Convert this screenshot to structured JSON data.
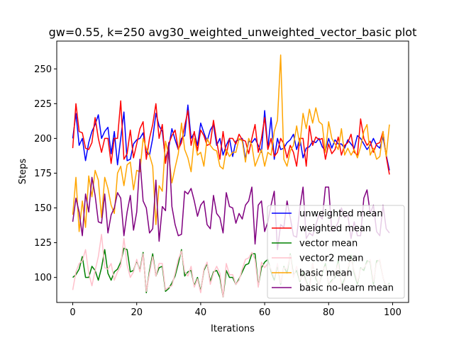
{
  "chart_data": {
    "type": "line",
    "title": "gw=0.55, k=250 avg30_weighted_unweighted_vector_basic plot",
    "xlabel": "Iterations",
    "ylabel": "Steps",
    "xlim": [
      -5,
      105
    ],
    "ylim": [
      82,
      270
    ],
    "xticks": [
      0,
      20,
      40,
      60,
      80,
      100
    ],
    "yticks": [
      100,
      125,
      150,
      175,
      200,
      225,
      250
    ],
    "grid": false,
    "legend_position": "lower-right",
    "series": [
      {
        "name": "unweighted mean",
        "color": "#0000ff",
        "values": [
          200,
          218,
          195,
          200,
          184,
          197,
          205,
          210,
          217,
          200,
          205,
          208,
          189,
          205,
          181,
          200,
          219,
          184,
          185,
          196,
          199,
          200,
          204,
          190,
          188,
          200,
          218,
          209,
          205,
          185,
          193,
          207,
          199,
          192,
          200,
          202,
          224,
          200,
          204,
          195,
          211,
          204,
          198,
          206,
          210,
          195,
          200,
          188,
          195,
          200,
          187,
          198,
          199,
          200,
          185,
          198,
          197,
          200,
          195,
          190,
          220,
          193,
          215,
          185,
          200,
          192,
          193,
          197,
          199,
          203,
          192,
          200,
          186,
          193,
          194,
          198,
          197,
          200,
          194,
          191,
          200,
          193,
          199,
          196,
          196,
          193,
          199,
          196,
          193,
          202,
          200,
          196,
          192,
          195,
          200,
          195,
          193,
          201,
          188,
          177
        ]
      },
      {
        "name": "weighted mean",
        "color": "#ff0000",
        "values": [
          193,
          225,
          205,
          204,
          193,
          192,
          197,
          215,
          200,
          190,
          200,
          200,
          182,
          200,
          200,
          227,
          185,
          189,
          206,
          186,
          196,
          207,
          212,
          185,
          200,
          210,
          225,
          200,
          210,
          182,
          196,
          202,
          206,
          192,
          197,
          209,
          220,
          195,
          205,
          191,
          206,
          202,
          195,
          196,
          213,
          198,
          185,
          205,
          188,
          200,
          200,
          196,
          203,
          199,
          198,
          189,
          200,
          210,
          190,
          200,
          215,
          192,
          200,
          187,
          190,
          200,
          196,
          186,
          195,
          190,
          180,
          200,
          200,
          180,
          209,
          195,
          201,
          199,
          200,
          185,
          196,
          189,
          192,
          201,
          188,
          195,
          197,
          203,
          190,
          188,
          214,
          200,
          195,
          198,
          190,
          196,
          197,
          205,
          187,
          174
        ]
      },
      {
        "name": "vector mean",
        "color": "#008000",
        "values": [
          100,
          102,
          106,
          115,
          100,
          100,
          108,
          105,
          98,
          107,
          120,
          103,
          98,
          104,
          106,
          111,
          121,
          120,
          104,
          105,
          112,
          105,
          118,
          89,
          105,
          117,
          101,
          107,
          108,
          90,
          92,
          96,
          101,
          110,
          120,
          101,
          104,
          105,
          94,
          100,
          90,
          105,
          110,
          97,
          104,
          105,
          100,
          86,
          105,
          100,
          100,
          95,
          99,
          104,
          109,
          110,
          117,
          117,
          94,
          107,
          111,
          113,
          104,
          98,
          109,
          95,
          108,
          103,
          117,
          102,
          105,
          97,
          104,
          97,
          92,
          110,
          99,
          95,
          103,
          110,
          95,
          98,
          100,
          113,
          94,
          99,
          105,
          116,
          103,
          95,
          107,
          105,
          112,
          111,
          95,
          112,
          112,
          100,
          93,
          96
        ]
      },
      {
        "name": "vector2 mean",
        "color": "#ffc0cb",
        "values": [
          91,
          104,
          110,
          112,
          120,
          103,
          94,
          105,
          115,
          131,
          107,
          106,
          110,
          98,
          104,
          108,
          128,
          109,
          100,
          104,
          113,
          104,
          117,
          90,
          103,
          115,
          101,
          110,
          110,
          91,
          93,
          94,
          103,
          113,
          119,
          104,
          101,
          108,
          93,
          99,
          89,
          106,
          111,
          95,
          103,
          108,
          103,
          86,
          110,
          102,
          102,
          95,
          98,
          106,
          113,
          114,
          118,
          113,
          93,
          111,
          107,
          110,
          106,
          100,
          110,
          96,
          107,
          106,
          116,
          100,
          108,
          98,
          102,
          96,
          90,
          110,
          101,
          95,
          105,
          108,
          96,
          96,
          102,
          110,
          93,
          97,
          107,
          113,
          105,
          97,
          106,
          107,
          110,
          113,
          97,
          110,
          113,
          100,
          94,
          95
        ]
      },
      {
        "name": "basic mean",
        "color": "#ffa500",
        "values": [
          145,
          172,
          133,
          155,
          136,
          173,
          158,
          177,
          170,
          143,
          172,
          164,
          152,
          146,
          175,
          180,
          166,
          181,
          183,
          163,
          177,
          176,
          200,
          193,
          188,
          180,
          138,
          166,
          162,
          198,
          188,
          168,
          179,
          189,
          211,
          192,
          186,
          176,
          200,
          188,
          190,
          180,
          200,
          195,
          192,
          191,
          180,
          178,
          192,
          187,
          190,
          190,
          200,
          198,
          183,
          200,
          195,
          180,
          186,
          192,
          180,
          190,
          188,
          205,
          213,
          260,
          185,
          180,
          191,
          195,
          209,
          195,
          218,
          207,
          221,
          211,
          222,
          212,
          210,
          190,
          212,
          200,
          196,
          192,
          207,
          188,
          193,
          188,
          192,
          186,
          194,
          205,
          210,
          188,
          193,
          185,
          187,
          205,
          187,
          210
        ]
      },
      {
        "name": "basic no-learn mean",
        "color": "#800080",
        "values": [
          140,
          157,
          147,
          130,
          160,
          147,
          172,
          159,
          140,
          139,
          160,
          132,
          145,
          150,
          161,
          157,
          130,
          147,
          159,
          134,
          147,
          185,
          155,
          150,
          132,
          135,
          170,
          126,
          151,
          148,
          197,
          151,
          138,
          130,
          131,
          162,
          160,
          164,
          155,
          144,
          152,
          155,
          138,
          135,
          159,
          146,
          143,
          132,
          161,
          151,
          150,
          139,
          146,
          142,
          152,
          155,
          165,
          124,
          152,
          155,
          133,
          140,
          152,
          162,
          120,
          138,
          136,
          155,
          143,
          130,
          129,
          150,
          165,
          128,
          132,
          130,
          138,
          145,
          142,
          165,
          165,
          133,
          135,
          140,
          150,
          143,
          145,
          128,
          140,
          130,
          130,
          157,
          163,
          146,
          152,
          133,
          130,
          152,
          135,
          132
        ]
      }
    ]
  }
}
